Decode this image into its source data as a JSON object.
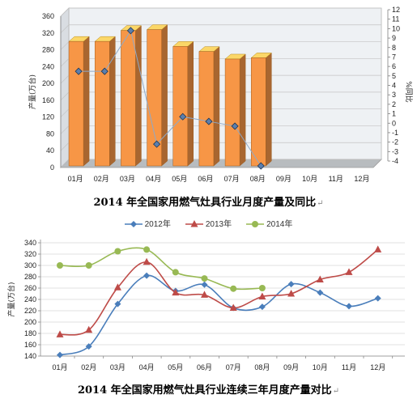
{
  "chart_data": [
    {
      "type": "bar",
      "title": "2014 年全国家用燃气灶具行业月度产量及同比",
      "categories": [
        "01月",
        "02月",
        "03月",
        "04月",
        "05月",
        "06月",
        "07月",
        "08月",
        "09月",
        "10月",
        "11月",
        "12月"
      ],
      "ylabel": "产量(万台)",
      "ylim": [
        0,
        360
      ],
      "yticks": [
        0,
        40,
        80,
        120,
        160,
        200,
        240,
        280,
        320,
        360
      ],
      "y2label": "%同比",
      "y2lim": [
        -4,
        12
      ],
      "y2ticks": [
        -4,
        -3,
        -2,
        -1,
        0,
        1,
        2,
        3,
        4,
        5,
        6,
        7,
        8,
        9,
        10,
        11,
        12
      ],
      "series": [
        {
          "kind": "bar",
          "color": "#f79646",
          "values": [
            300,
            300,
            326,
            328,
            288,
            276,
            258,
            261,
            null,
            null,
            null,
            null
          ]
        },
        {
          "kind": "line-secondary",
          "color": "#8ea9c8",
          "values": [
            6,
            6,
            10.3,
            -1.7,
            1.2,
            0.7,
            0.2,
            -4,
            null,
            null,
            null,
            null
          ]
        }
      ],
      "grid": true,
      "style": "3d-column"
    },
    {
      "type": "line",
      "title": "2014 年全国家用燃气灶具行业连续三年月度产量对比",
      "categories": [
        "01月",
        "02月",
        "03月",
        "04月",
        "05月",
        "06月",
        "07月",
        "08月",
        "09月",
        "10月",
        "11月",
        "12月"
      ],
      "ylabel": "产量(万台)",
      "ylim": [
        140,
        340
      ],
      "yticks": [
        140,
        160,
        180,
        200,
        220,
        240,
        260,
        280,
        300,
        320,
        340
      ],
      "series": [
        {
          "name": "2012年",
          "color": "#4a7ebb",
          "marker": "diamond",
          "values": [
            142,
            157,
            232,
            282,
            255,
            266,
            225,
            227,
            267,
            252,
            228,
            242
          ]
        },
        {
          "name": "2013年",
          "color": "#be4b48",
          "marker": "triangle",
          "values": [
            178,
            186,
            261,
            306,
            252,
            248,
            225,
            245,
            250,
            275,
            288,
            328
          ]
        },
        {
          "name": "2014年",
          "color": "#98b954",
          "marker": "circle",
          "values": [
            300,
            300,
            325,
            328,
            288,
            277,
            259,
            260,
            null,
            null,
            null,
            null
          ]
        }
      ],
      "legend": "top",
      "grid": true
    }
  ],
  "captions": {
    "chart1": "2014 年全国家用燃气灶具行业月度产量及同比",
    "chart2": "2014 年全国家用燃气灶具行业连续三年月度产量对比",
    "return_mark": "↵"
  }
}
